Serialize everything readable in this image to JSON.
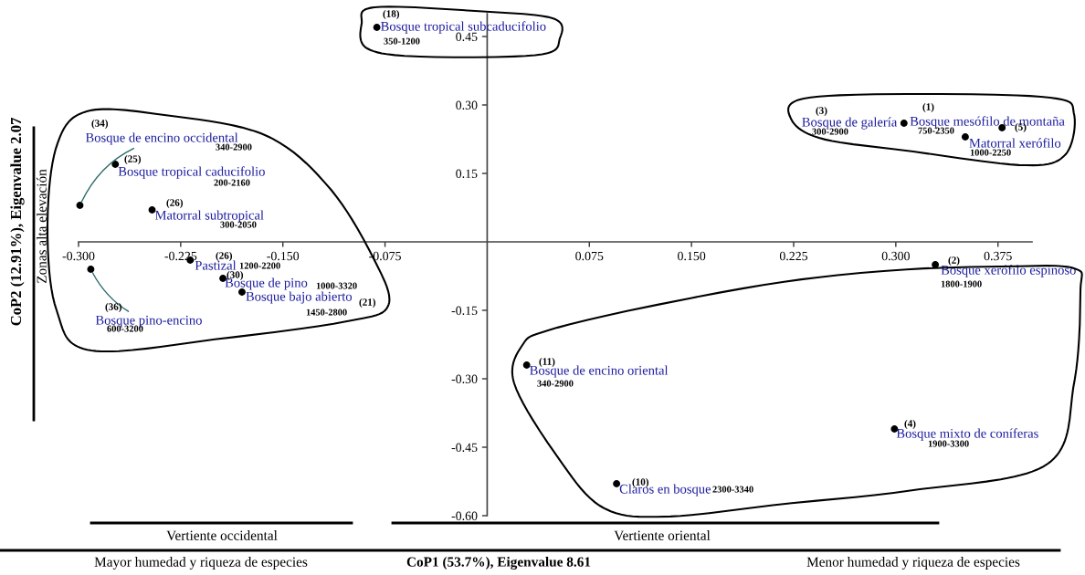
{
  "chart_data": {
    "type": "scatter",
    "xlabel": "CoP1 (53.7%), Eigenvalue 8.61",
    "ylabel": "CoP2 (12.91%), Eigenvalue 2.07",
    "x": [
      -0.081,
      -0.299,
      -0.273,
      -0.246,
      -0.218,
      -0.291,
      -0.194,
      -0.18,
      0.306,
      0.378,
      0.351,
      0.329,
      0.029,
      0.299,
      0.095
    ],
    "series": [
      {
        "color": "#000000",
        "values": [
          0.47,
          0.08,
          0.17,
          0.07,
          -0.04,
          -0.06,
          -0.08,
          -0.11,
          0.26,
          0.25,
          0.23,
          -0.05,
          -0.27,
          -0.41,
          -0.53
        ]
      }
    ],
    "marker": "circle",
    "xlim": [
      -0.3,
      0.4
    ],
    "ylim": [
      -0.6,
      0.5
    ],
    "xticks": [
      {
        "value": -0.3,
        "label": "-0.300"
      },
      {
        "value": -0.225,
        "label": "-0.225"
      },
      {
        "value": -0.15,
        "label": "-0.150"
      },
      {
        "value": -0.075,
        "label": "-0.075"
      },
      {
        "value": 0.075,
        "label": "0.075"
      },
      {
        "value": 0.15,
        "label": "0.150"
      },
      {
        "value": 0.225,
        "label": "0.225"
      },
      {
        "value": 0.3,
        "label": "0.300"
      },
      {
        "value": 0.375,
        "label": "0.375"
      }
    ],
    "yticks": [
      {
        "value": 0.45,
        "label": "0.45"
      },
      {
        "value": 0.3,
        "label": "0.30"
      },
      {
        "value": 0.15,
        "label": "0.15"
      },
      {
        "value": -0.15,
        "label": "-0.15"
      },
      {
        "value": -0.3,
        "label": "-0.30"
      },
      {
        "value": -0.45,
        "label": "-0.45"
      },
      {
        "value": -0.6,
        "label": "-0.60"
      }
    ],
    "annotations": [
      "(18)",
      {
        "text": "Bosque tropical subcaducifolio",
        "x": -0.081,
        "y": 0.47
      },
      "350-1200",
      "(34)",
      {
        "text": "Bosque de encino occidental",
        "x": -0.299,
        "y": 0.08
      },
      "340-2900",
      "(25)",
      {
        "text": "Bosque tropical caducifolio",
        "x": -0.273,
        "y": 0.17
      },
      "200-2160",
      "(26)",
      {
        "text": "Matorral subtropical",
        "x": -0.246,
        "y": 0.07
      },
      "300-2050",
      "(26)",
      {
        "text": "Pastizal",
        "x": -0.218,
        "y": -0.04
      },
      "1200-2200",
      "(36)",
      {
        "text": "Bosque pino-encino",
        "x": -0.291,
        "y": -0.06
      },
      "600-3200",
      "(30)",
      {
        "text": "Bosque de pino",
        "x": -0.194,
        "y": -0.08
      },
      "1000-3320",
      "(21)",
      {
        "text": "Bosque bajo abierto",
        "x": -0.18,
        "y": -0.11
      },
      "1450-2800",
      "(3)",
      {
        "text": "Bosque de galería",
        "x": 0.306,
        "y": 0.26
      },
      "300-2900",
      "(1)",
      {
        "text": "Bosque mesófilo de montaña",
        "x": 0.378,
        "y": 0.25
      },
      "750-2350",
      "(5)",
      {
        "text": "Matorral xerófilo",
        "x": 0.351,
        "y": 0.23
      },
      "1000-2250",
      "(2)",
      {
        "text": "Bosque xerófilo espinoso",
        "x": 0.329,
        "y": -0.05
      },
      "1800-1900",
      "(11)",
      {
        "text": "Bosque de encino oriental",
        "x": 0.029,
        "y": -0.27
      },
      "340-2900",
      "(4)",
      {
        "text": "Bosque mixto de coníferas",
        "x": 0.299,
        "y": -0.41
      },
      "1900-3300",
      "(10)",
      {
        "text": "Claros en bosque",
        "x": 0.095,
        "y": -0.53
      },
      "2300-3340",
      "Vertiente occidental",
      "Vertiente oriental",
      "Mayor humedad y riqueza de especies",
      "Menor humedad y riqueza de especies",
      "Zonas alta elevación"
    ]
  }
}
